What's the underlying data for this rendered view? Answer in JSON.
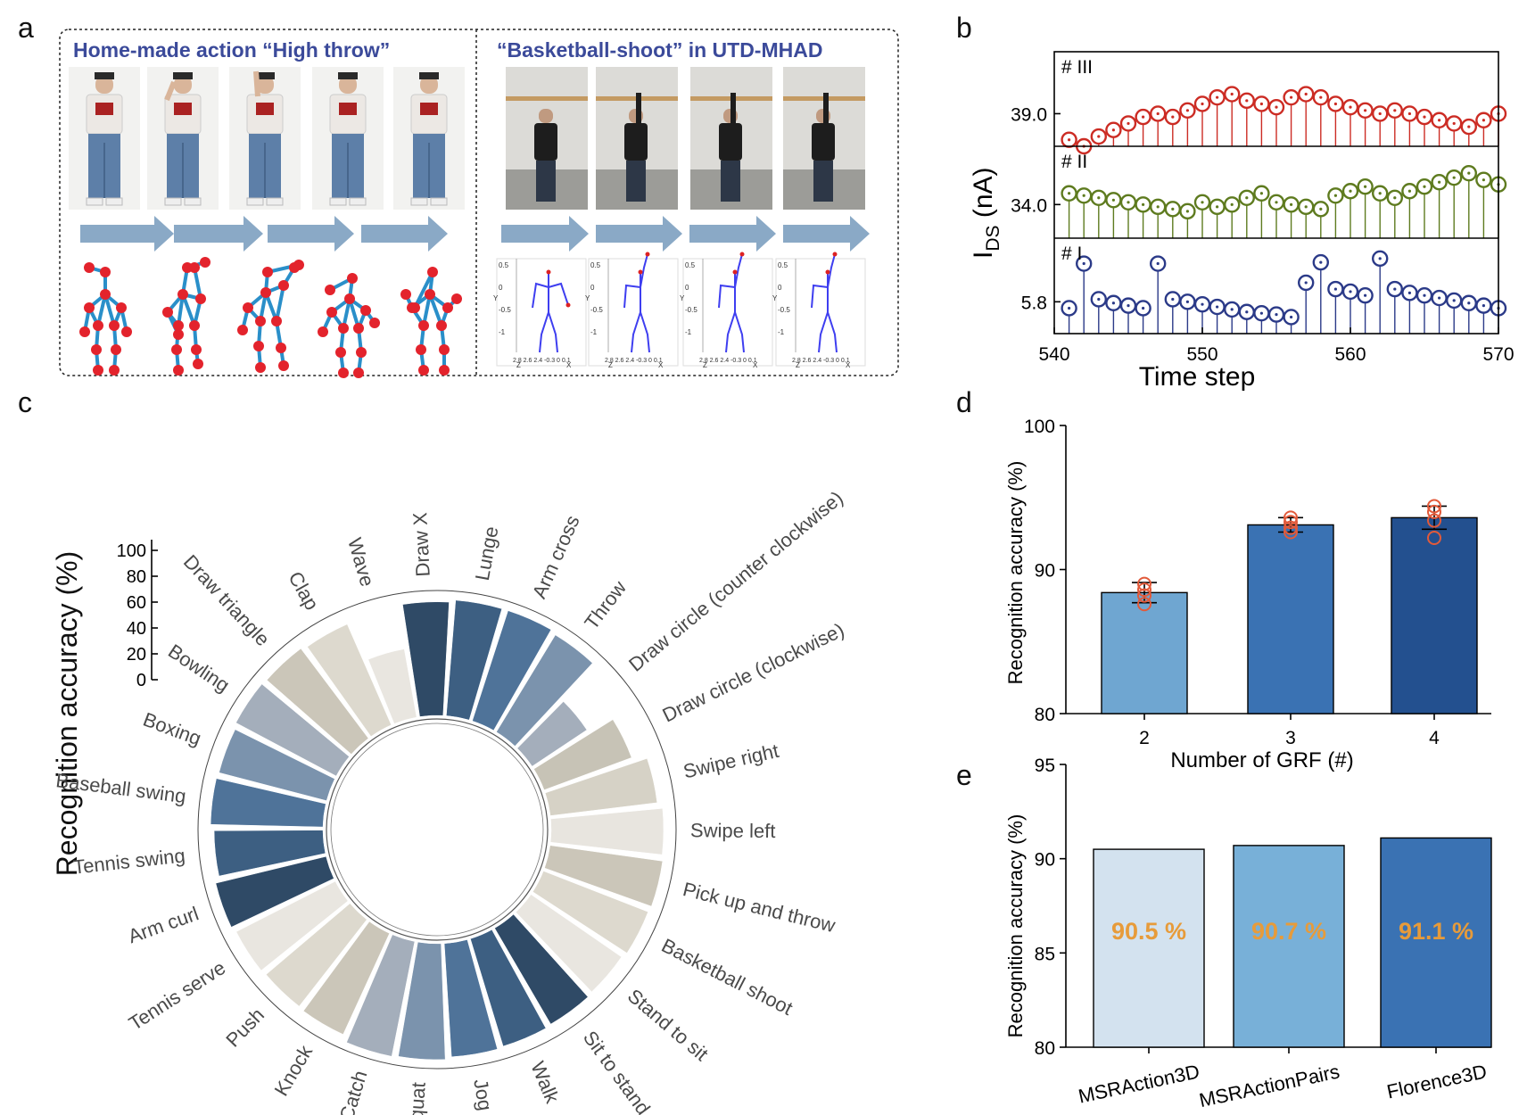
{
  "panels": {
    "a": "a",
    "b": "b",
    "c": "c",
    "d": "d",
    "e": "e"
  },
  "colors": {
    "title_text": "#3b4a9a",
    "arrow": "#8aa9c6",
    "skeleton_line": "#2a8fc9",
    "skeleton_joint": "#e3232c",
    "series_III": "#cc2c24",
    "series_II": "#5e7b1f",
    "series_I": "#2b3a88",
    "bar_d": [
      "#6fa6d1",
      "#3a72b3",
      "#23508f"
    ],
    "dot_d": "#e25a3a",
    "bar_e": [
      "#d3e2ef",
      "#78b0d8",
      "#3a72b3"
    ],
    "label_e": "#e79b3a"
  },
  "panel_a": {
    "left_title": "Home-made action “High throw”",
    "right_title": "“Basketball-shoot” in UTD-MHAD",
    "mini_axis": {
      "y_ticks": [
        "0.5",
        "0",
        "-0.5",
        "-1"
      ],
      "y_label": "Y",
      "bottom": "2.8 2.6 2.4 -0.3 0 0.1",
      "z": "Z",
      "x": "X"
    }
  },
  "chart_data": [
    {
      "id": "b",
      "type": "scatter",
      "xlabel": "Time step",
      "ylabel_main": "I",
      "ylabel_sub": "DS",
      "ylabel_unit": " (nA)",
      "xlim": [
        540,
        570
      ],
      "x_ticks": [
        "540",
        "550",
        "560",
        "570"
      ],
      "x": [
        541,
        542,
        543,
        544,
        545,
        546,
        547,
        548,
        549,
        550,
        551,
        552,
        553,
        554,
        555,
        556,
        557,
        558,
        559,
        560,
        561,
        562,
        563,
        564,
        565,
        566,
        567,
        568,
        569,
        570
      ],
      "series": [
        {
          "name": "# III",
          "tick": "39.0",
          "tick_value": 39.0,
          "ylim": [
            38.0,
            40.9
          ],
          "values": [
            38.2,
            38.0,
            38.3,
            38.5,
            38.7,
            38.9,
            39.0,
            38.9,
            39.1,
            39.3,
            39.5,
            39.6,
            39.4,
            39.3,
            39.2,
            39.5,
            39.6,
            39.5,
            39.3,
            39.2,
            39.1,
            39.0,
            39.1,
            39.0,
            38.9,
            38.8,
            38.7,
            38.6,
            38.8,
            39.0
          ]
        },
        {
          "name": "# II",
          "tick": "34.0",
          "tick_value": 34.0,
          "ylim": [
            32.5,
            36.6
          ],
          "values": [
            34.5,
            34.4,
            34.3,
            34.2,
            34.1,
            34.0,
            33.9,
            33.8,
            33.7,
            34.1,
            33.9,
            34.0,
            34.3,
            34.5,
            34.1,
            34.0,
            33.9,
            33.8,
            34.4,
            34.6,
            34.8,
            34.5,
            34.3,
            34.6,
            34.8,
            35.0,
            35.2,
            35.4,
            35.1,
            34.9
          ]
        },
        {
          "name": "# I",
          "tick": "5.8",
          "tick_value": 5.8,
          "ylim": [
            5.55,
            6.3
          ],
          "values": [
            5.75,
            6.1,
            5.82,
            5.79,
            5.77,
            5.75,
            6.1,
            5.82,
            5.8,
            5.78,
            5.76,
            5.74,
            5.72,
            5.71,
            5.7,
            5.68,
            5.95,
            6.11,
            5.9,
            5.88,
            5.85,
            6.14,
            5.9,
            5.87,
            5.85,
            5.83,
            5.81,
            5.79,
            5.77,
            5.75
          ]
        }
      ]
    },
    {
      "id": "c",
      "type": "bar",
      "polar": true,
      "ylabel": "Recognition accuracy (%)",
      "ylim": [
        0,
        100
      ],
      "r_ticks": [
        "100",
        "80",
        "60",
        "40",
        "20",
        "0"
      ],
      "categories": [
        "Draw X",
        "Lunge",
        "Arm cross",
        "Throw",
        "Draw circle (counter clockwise)",
        "Draw circle (clockwise)",
        "Swipe right",
        "Swipe left",
        "Pick up and throw",
        "Basketball shoot",
        "Stand to sit",
        "Sit to stand",
        "Walk",
        "Jog",
        "Squat",
        "Catch",
        "Knock",
        "Push",
        "Tennis serve",
        "Arm curl",
        "Tennis swing",
        "Baseball swing",
        "Boxing",
        "Bowling",
        "Draw triangle",
        "Clap",
        "Wave"
      ],
      "values": [
        95,
        97,
        97,
        95,
        55,
        78,
        90,
        94,
        95,
        94,
        92,
        93,
        94,
        95,
        97,
        98,
        93,
        92,
        93,
        95,
        91,
        94,
        93,
        95,
        94,
        92,
        58
      ],
      "colors": [
        "#2f4a66",
        "#3d5f82",
        "#4f7399",
        "#7b93ad",
        "#a4aebb",
        "#c7c3b6",
        "#d6d2c6",
        "#e8e5df",
        "#cbc6b9",
        "#ddd9ce",
        "#e9e6e0",
        "#2f4a66",
        "#3d5f82",
        "#4f7399",
        "#7b93ad",
        "#a4aebb",
        "#cbc6b9",
        "#ddd9ce",
        "#e9e6e0",
        "#2f4a66",
        "#3d5f82",
        "#4f7399",
        "#7b93ad",
        "#a4aebb",
        "#cbc6b9",
        "#ddd9ce",
        "#e9e6e0"
      ]
    },
    {
      "id": "d",
      "type": "bar",
      "categories": [
        "2",
        "3",
        "4"
      ],
      "values": [
        88.4,
        93.1,
        93.6
      ],
      "errors": [
        0.7,
        0.5,
        0.8
      ],
      "points": [
        [
          89.0,
          88.6,
          88.2,
          87.6
        ],
        [
          93.6,
          93.3,
          92.9,
          92.6
        ],
        [
          94.4,
          94.0,
          93.4,
          92.2
        ]
      ],
      "xlabel": "Number of GRF (#)",
      "ylabel": "Recognition accuracy (%)",
      "ylim": [
        80,
        100
      ],
      "y_ticks": [
        "80",
        "90",
        "100"
      ]
    },
    {
      "id": "e",
      "type": "bar",
      "categories": [
        "MSRAction3D",
        "MSRActionPairs",
        "Florence3D"
      ],
      "values": [
        90.5,
        90.7,
        91.1
      ],
      "data_labels": [
        "90.5 %",
        "90.7 %",
        "91.1 %"
      ],
      "ylabel": "Recognition accuracy (%)",
      "ylim": [
        80,
        95
      ],
      "y_ticks": [
        "80",
        "85",
        "90",
        "95"
      ]
    }
  ]
}
